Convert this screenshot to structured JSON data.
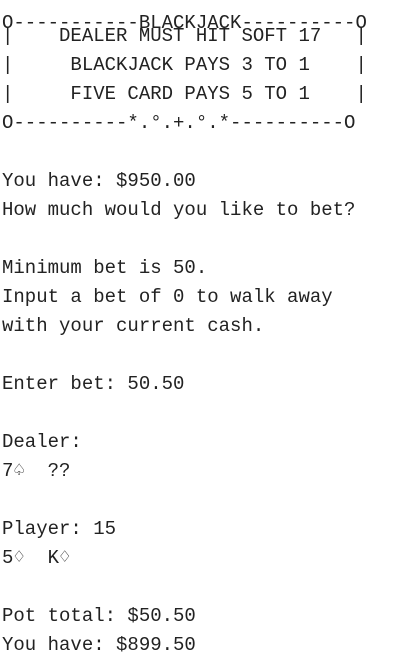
{
  "banner": {
    "top_border": "O-----------BLACKJACK----------O",
    "rules": [
      "|    DEALER MUST HIT SOFT 17   |",
      "|     BLACKJACK PAYS 3 TO 1    |",
      "|     FIVE CARD PAYS 5 TO 1    |"
    ],
    "bottom_border": "O----------*.°.+.°.*----------O"
  },
  "balance_prompt": {
    "label": "You have: $950.00",
    "question": "How much would you like to bet?"
  },
  "bet_info": {
    "minimum": "Minimum bet is 50.",
    "walk_away_1": "Input a bet of 0 to walk away",
    "walk_away_2": "with your current cash."
  },
  "bet_entry": {
    "prompt": "Enter bet: ",
    "value": "50.50"
  },
  "dealer": {
    "label": "Dealer:",
    "cards": "7♤  ??"
  },
  "player": {
    "label": "Player: 15",
    "cards": "5♢  K♢"
  },
  "summary": {
    "pot": "Pot total: $50.50",
    "remaining": "You have: $899.50"
  }
}
